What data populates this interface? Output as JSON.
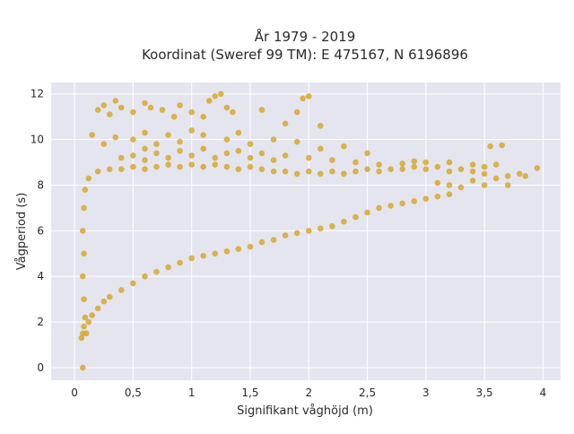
{
  "chart_data": {
    "type": "scatter",
    "title_line1": "År 1979 - 2019",
    "title_line2": "Koordinat (Sweref 99 TM): E 475167, N 6196896",
    "xlabel": "Signifikant våghöjd (m)",
    "ylabel": "Vågperiod (s)",
    "xlim": [
      -0.2,
      4.15
    ],
    "ylim": [
      -0.55,
      12.5
    ],
    "x_ticks": [
      0,
      0.5,
      1,
      1.5,
      2,
      2.5,
      3,
      3.5,
      4
    ],
    "x_tick_labels": [
      "0",
      "0,5",
      "1",
      "1,5",
      "2",
      "2,5",
      "3",
      "3,5",
      "4"
    ],
    "y_ticks": [
      0,
      2,
      4,
      6,
      8,
      10,
      12
    ],
    "y_tick_labels": [
      "0",
      "2",
      "4",
      "6",
      "8",
      "10",
      "12"
    ],
    "grid": true,
    "background_color": "#e5e5f0",
    "marker_color": "#d4a520",
    "points": [
      [
        0.07,
        0.0
      ],
      [
        0.06,
        1.3
      ],
      [
        0.07,
        1.5
      ],
      [
        0.08,
        1.8
      ],
      [
        0.09,
        2.2
      ],
      [
        0.08,
        3.0
      ],
      [
        0.07,
        4.0
      ],
      [
        0.08,
        5.0
      ],
      [
        0.07,
        6.0
      ],
      [
        0.08,
        7.0
      ],
      [
        0.09,
        7.8
      ],
      [
        0.1,
        1.5
      ],
      [
        0.12,
        2.0
      ],
      [
        0.15,
        2.3
      ],
      [
        0.2,
        2.6
      ],
      [
        0.25,
        2.9
      ],
      [
        0.3,
        3.1
      ],
      [
        0.4,
        3.4
      ],
      [
        0.5,
        3.7
      ],
      [
        0.6,
        4.0
      ],
      [
        0.7,
        4.2
      ],
      [
        0.8,
        4.4
      ],
      [
        0.9,
        4.6
      ],
      [
        1.0,
        4.8
      ],
      [
        1.1,
        4.9
      ],
      [
        1.2,
        5.0
      ],
      [
        1.3,
        5.1
      ],
      [
        1.4,
        5.2
      ],
      [
        1.5,
        5.3
      ],
      [
        1.6,
        5.5
      ],
      [
        1.7,
        5.6
      ],
      [
        1.8,
        5.8
      ],
      [
        1.9,
        5.9
      ],
      [
        2.0,
        6.0
      ],
      [
        2.1,
        6.1
      ],
      [
        2.2,
        6.2
      ],
      [
        2.3,
        6.4
      ],
      [
        2.4,
        6.6
      ],
      [
        2.5,
        6.8
      ],
      [
        2.6,
        7.0
      ],
      [
        2.7,
        7.1
      ],
      [
        2.8,
        7.2
      ],
      [
        2.9,
        7.3
      ],
      [
        3.0,
        7.4
      ],
      [
        3.1,
        7.5
      ],
      [
        3.2,
        7.6
      ],
      [
        0.12,
        8.3
      ],
      [
        0.2,
        8.6
      ],
      [
        0.3,
        8.7
      ],
      [
        0.4,
        8.7
      ],
      [
        0.5,
        8.8
      ],
      [
        0.6,
        8.7
      ],
      [
        0.7,
        8.8
      ],
      [
        0.8,
        8.9
      ],
      [
        0.9,
        8.8
      ],
      [
        1.0,
        8.9
      ],
      [
        1.1,
        8.8
      ],
      [
        1.2,
        8.9
      ],
      [
        1.3,
        8.8
      ],
      [
        1.4,
        8.7
      ],
      [
        1.5,
        8.8
      ],
      [
        1.6,
        8.7
      ],
      [
        1.7,
        8.6
      ],
      [
        1.8,
        8.6
      ],
      [
        1.9,
        8.5
      ],
      [
        2.0,
        8.6
      ],
      [
        2.1,
        8.5
      ],
      [
        2.2,
        8.6
      ],
      [
        2.3,
        8.5
      ],
      [
        2.4,
        8.6
      ],
      [
        2.5,
        8.7
      ],
      [
        2.6,
        8.6
      ],
      [
        2.7,
        8.7
      ],
      [
        2.8,
        8.7
      ],
      [
        2.9,
        8.8
      ],
      [
        3.0,
        8.7
      ],
      [
        3.1,
        8.8
      ],
      [
        3.2,
        8.6
      ],
      [
        3.3,
        8.7
      ],
      [
        3.4,
        8.6
      ],
      [
        3.5,
        8.5
      ],
      [
        3.6,
        8.3
      ],
      [
        3.1,
        8.1
      ],
      [
        3.2,
        8.0
      ],
      [
        3.3,
        7.9
      ],
      [
        3.4,
        8.2
      ],
      [
        3.5,
        8.0
      ],
      [
        3.7,
        8.4
      ],
      [
        0.4,
        9.2
      ],
      [
        0.5,
        9.3
      ],
      [
        0.6,
        9.1
      ],
      [
        0.7,
        9.4
      ],
      [
        0.8,
        9.2
      ],
      [
        0.9,
        9.5
      ],
      [
        1.0,
        9.3
      ],
      [
        1.1,
        9.6
      ],
      [
        1.2,
        9.2
      ],
      [
        1.3,
        9.4
      ],
      [
        1.4,
        9.5
      ],
      [
        1.5,
        9.2
      ],
      [
        1.6,
        9.4
      ],
      [
        1.7,
        9.1
      ],
      [
        1.8,
        9.3
      ],
      [
        2.0,
        9.2
      ],
      [
        2.2,
        9.1
      ],
      [
        2.4,
        9.0
      ],
      [
        2.6,
        8.9
      ],
      [
        2.8,
        8.95
      ],
      [
        2.9,
        9.05
      ],
      [
        3.0,
        9.0
      ],
      [
        3.2,
        9.0
      ],
      [
        3.4,
        8.9
      ],
      [
        3.5,
        8.8
      ],
      [
        3.6,
        8.9
      ],
      [
        3.8,
        8.5
      ],
      [
        3.95,
        8.75
      ],
      [
        3.85,
        8.4
      ],
      [
        3.7,
        8.0
      ],
      [
        0.25,
        9.8
      ],
      [
        0.35,
        10.1
      ],
      [
        0.5,
        10.0
      ],
      [
        0.6,
        10.3
      ],
      [
        0.8,
        10.2
      ],
      [
        0.9,
        9.9
      ],
      [
        1.0,
        10.4
      ],
      [
        1.1,
        10.2
      ],
      [
        1.3,
        10.0
      ],
      [
        1.4,
        10.3
      ],
      [
        1.5,
        9.8
      ],
      [
        1.7,
        10.0
      ],
      [
        1.9,
        9.9
      ],
      [
        2.1,
        9.6
      ],
      [
        2.3,
        9.7
      ],
      [
        2.5,
        9.4
      ],
      [
        3.55,
        9.7
      ],
      [
        3.65,
        9.75
      ],
      [
        0.6,
        9.6
      ],
      [
        0.7,
        9.8
      ],
      [
        0.2,
        11.3
      ],
      [
        0.25,
        11.5
      ],
      [
        0.3,
        11.1
      ],
      [
        0.35,
        11.7
      ],
      [
        0.4,
        11.4
      ],
      [
        0.5,
        11.2
      ],
      [
        0.6,
        11.6
      ],
      [
        0.65,
        11.4
      ],
      [
        0.75,
        11.3
      ],
      [
        0.85,
        11.0
      ],
      [
        0.9,
        11.5
      ],
      [
        1.0,
        11.2
      ],
      [
        1.1,
        11.0
      ],
      [
        1.15,
        11.7
      ],
      [
        1.2,
        11.9
      ],
      [
        1.25,
        12.0
      ],
      [
        1.3,
        11.4
      ],
      [
        1.35,
        11.2
      ],
      [
        1.6,
        11.3
      ],
      [
        1.9,
        11.2
      ],
      [
        1.95,
        11.8
      ],
      [
        2.0,
        11.9
      ],
      [
        1.8,
        10.7
      ],
      [
        2.1,
        10.6
      ],
      [
        0.15,
        10.2
      ]
    ]
  }
}
